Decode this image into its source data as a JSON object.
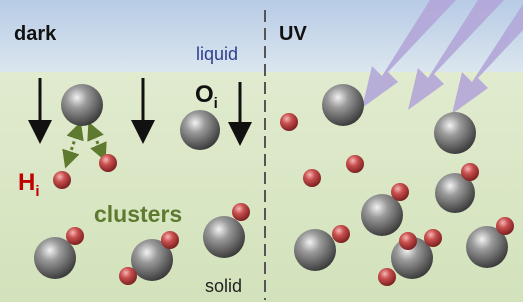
{
  "labels": {
    "dark": "dark",
    "liquid": "liquid",
    "uv": "UV",
    "oxygen": {
      "symbol": "O",
      "subscript": "i"
    },
    "hydrogen": {
      "symbol": "H",
      "subscript": "i"
    },
    "clusters": "clusters",
    "solid": "solid"
  }
}
